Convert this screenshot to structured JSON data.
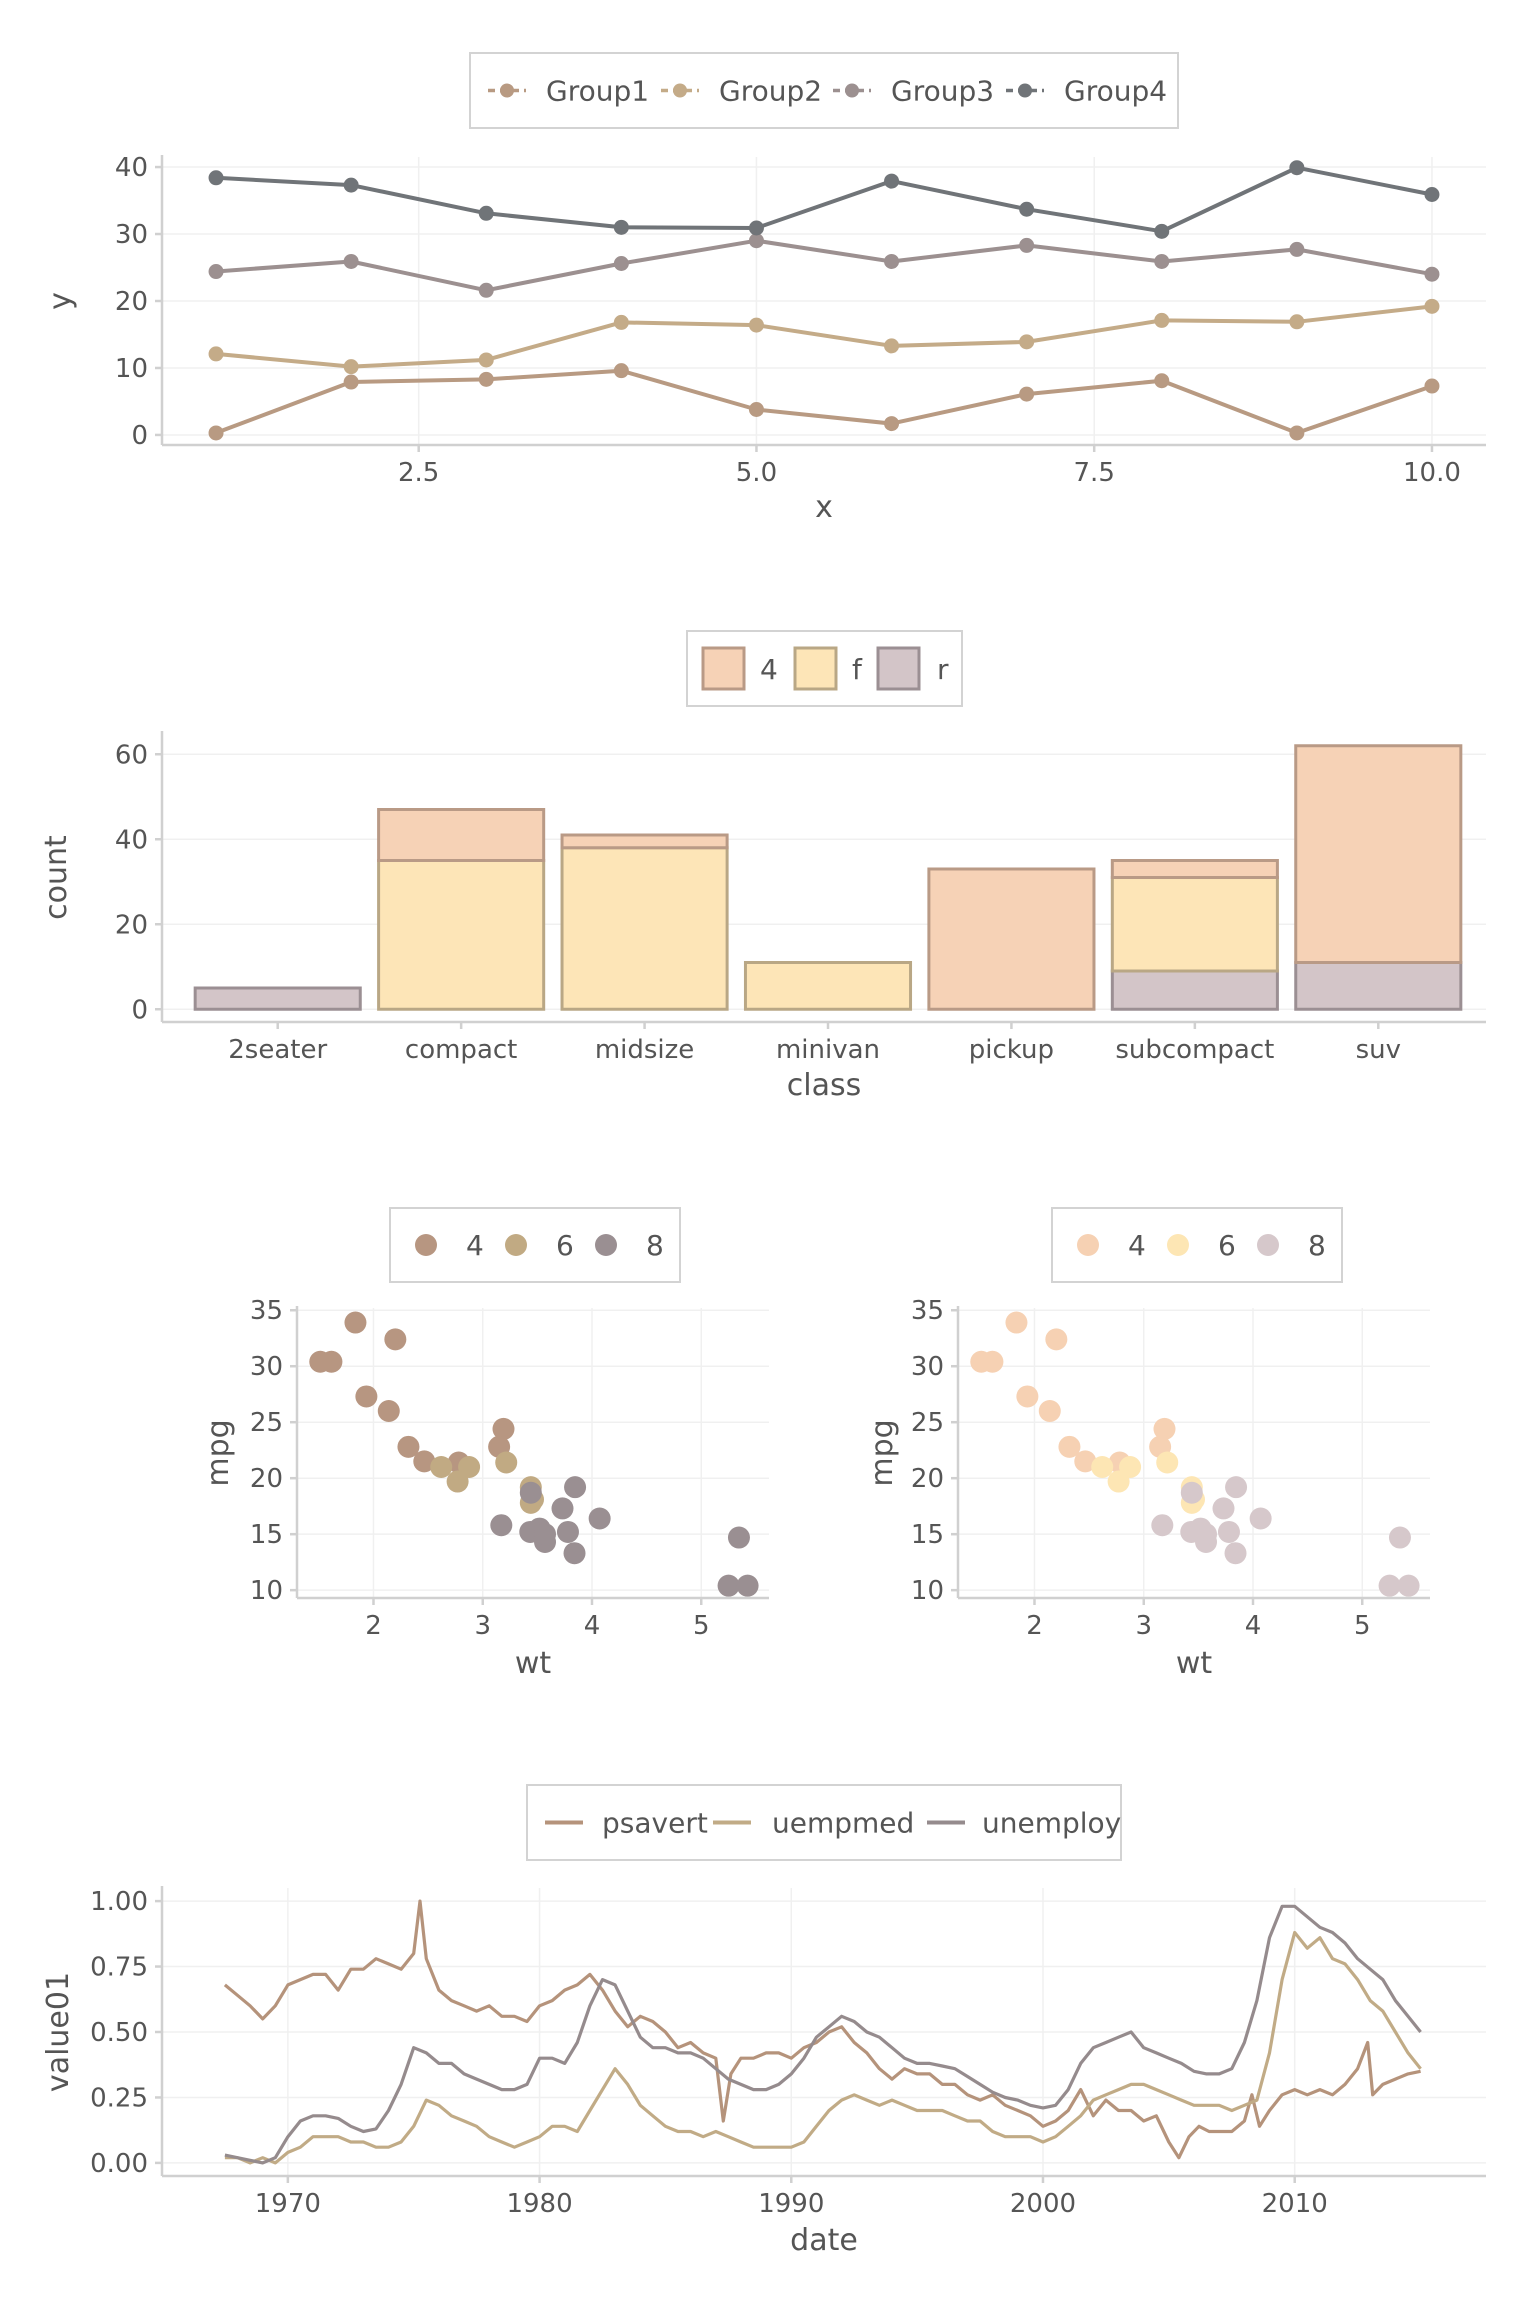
{
  "chart_data": [
    {
      "type": "line",
      "xlabel": "x",
      "ylabel": "y",
      "xlim": [
        0.6,
        10.4
      ],
      "ylim": [
        -1.5,
        41.5
      ],
      "xticks": [
        2.5,
        5.0,
        7.5,
        10.0
      ],
      "xtick_labels": [
        "2.5",
        "5.0",
        "7.5",
        "10.0"
      ],
      "yticks": [
        0,
        10,
        20,
        30,
        40
      ],
      "ytick_labels": [
        "0",
        "10",
        "20",
        "30",
        "40"
      ],
      "legend_position": "top",
      "grid": true,
      "markers": true,
      "x": [
        1,
        2,
        3,
        4,
        5,
        6,
        7,
        8,
        9,
        10
      ],
      "series": [
        {
          "name": "Group1",
          "color": "#b89a82",
          "values": [
            0.3,
            7.9,
            8.3,
            9.6,
            3.8,
            1.7,
            6.1,
            8.1,
            0.3,
            7.3
          ]
        },
        {
          "name": "Group2",
          "color": "#c4ab88",
          "values": [
            12.1,
            10.2,
            11.2,
            16.8,
            16.4,
            13.3,
            13.9,
            17.1,
            16.9,
            19.2
          ]
        },
        {
          "name": "Group3",
          "color": "#9c9090",
          "values": [
            24.4,
            25.9,
            21.6,
            25.6,
            29.0,
            25.9,
            28.3,
            25.9,
            27.7,
            24.0
          ]
        },
        {
          "name": "Group4",
          "color": "#707478",
          "values": [
            38.4,
            37.3,
            33.1,
            31.0,
            30.9,
            37.9,
            33.7,
            30.4,
            39.9,
            35.9
          ]
        }
      ]
    },
    {
      "type": "bar",
      "stacked": true,
      "xlabel": "class",
      "ylabel": "count",
      "ylim": [
        -3,
        65
      ],
      "yticks": [
        0,
        20,
        40,
        60
      ],
      "ytick_labels": [
        "0",
        "20",
        "40",
        "60"
      ],
      "legend_position": "top",
      "grid": true,
      "categories": [
        "2seater",
        "compact",
        "midsize",
        "minivan",
        "pickup",
        "subcompact",
        "suv"
      ],
      "series": [
        {
          "name": "r",
          "color": "#d3c5c8",
          "values": [
            5,
            0,
            0,
            0,
            0,
            9,
            11
          ]
        },
        {
          "name": "f",
          "color": "#fde5b7",
          "values": [
            0,
            35,
            38,
            11,
            0,
            22,
            0
          ]
        },
        {
          "name": "4",
          "color": "#f6d2b6",
          "values": [
            0,
            12,
            3,
            0,
            33,
            4,
            51
          ]
        }
      ],
      "legend_order": [
        "4",
        "f",
        "r"
      ],
      "edge_colors": {
        "4": "#b99a86",
        "f": "#b9a785",
        "r": "#9b8f93"
      }
    },
    {
      "type": "scatter",
      "xlabel": "wt",
      "ylabel": "mpg",
      "xlim": [
        1.3,
        5.62
      ],
      "ylim": [
        9.3,
        35.2
      ],
      "xticks": [
        2,
        3,
        4,
        5
      ],
      "xtick_labels": [
        "2",
        "3",
        "4",
        "5"
      ],
      "yticks": [
        10,
        15,
        20,
        25,
        30,
        35
      ],
      "ytick_labels": [
        "10",
        "15",
        "20",
        "25",
        "30",
        "35"
      ],
      "legend_position": "top",
      "grid": true,
      "series": [
        {
          "name": "4",
          "color": "#b79681",
          "x": [
            2.32,
            3.19,
            3.15,
            2.2,
            1.615,
            1.835,
            2.465,
            1.935,
            2.14,
            1.513,
            2.78
          ],
          "y": [
            22.8,
            24.4,
            22.8,
            32.4,
            30.4,
            33.9,
            21.5,
            27.3,
            26.0,
            30.4,
            21.4
          ]
        },
        {
          "name": "6",
          "color": "#c1aa83",
          "x": [
            2.62,
            2.875,
            3.215,
            3.46,
            3.44,
            3.44,
            2.77
          ],
          "y": [
            21.0,
            21.0,
            21.4,
            18.1,
            19.2,
            17.8,
            19.7
          ]
        },
        {
          "name": "8",
          "color": "#9a8f92",
          "x": [
            3.44,
            3.57,
            4.07,
            3.73,
            3.78,
            5.25,
            5.424,
            5.345,
            3.52,
            3.435,
            3.84,
            3.845,
            3.17,
            3.57
          ],
          "y": [
            18.7,
            14.3,
            16.4,
            17.3,
            15.2,
            10.4,
            10.4,
            14.7,
            15.5,
            15.2,
            13.3,
            19.2,
            15.8,
            15.0
          ]
        }
      ]
    },
    {
      "type": "scatter",
      "xlabel": "wt",
      "ylabel": "mpg",
      "xlim": [
        1.3,
        5.62
      ],
      "ylim": [
        9.3,
        35.2
      ],
      "xticks": [
        2,
        3,
        4,
        5
      ],
      "xtick_labels": [
        "2",
        "3",
        "4",
        "5"
      ],
      "yticks": [
        10,
        15,
        20,
        25,
        30,
        35
      ],
      "ytick_labels": [
        "10",
        "15",
        "20",
        "25",
        "30",
        "35"
      ],
      "legend_position": "top",
      "grid": true,
      "series": [
        {
          "name": "4",
          "color": "#f6d1b3",
          "x": [
            2.32,
            3.19,
            3.15,
            2.2,
            1.615,
            1.835,
            2.465,
            1.935,
            2.14,
            1.513,
            2.78
          ],
          "y": [
            22.8,
            24.4,
            22.8,
            32.4,
            30.4,
            33.9,
            21.5,
            27.3,
            26.0,
            30.4,
            21.4
          ]
        },
        {
          "name": "6",
          "color": "#fde6b4",
          "x": [
            2.62,
            2.875,
            3.215,
            3.46,
            3.44,
            3.44,
            2.77
          ],
          "y": [
            21.0,
            21.0,
            21.4,
            18.1,
            19.2,
            17.8,
            19.7
          ]
        },
        {
          "name": "8",
          "color": "#d6c8cb",
          "x": [
            3.44,
            3.57,
            4.07,
            3.73,
            3.78,
            5.25,
            5.424,
            5.345,
            3.52,
            3.435,
            3.84,
            3.845,
            3.17,
            3.57
          ],
          "y": [
            18.7,
            14.3,
            16.4,
            17.3,
            15.2,
            10.4,
            10.4,
            14.7,
            15.5,
            15.2,
            13.3,
            19.2,
            15.8,
            15.0
          ]
        }
      ]
    },
    {
      "type": "line",
      "xlabel": "date",
      "ylabel": "value01",
      "xlim": [
        1965.0,
        2017.6
      ],
      "ylim": [
        -0.05,
        1.05
      ],
      "xticks": [
        1970,
        1980,
        1990,
        2000,
        2010
      ],
      "xtick_labels": [
        "1970",
        "1980",
        "1990",
        "2000",
        "2010"
      ],
      "yticks": [
        0,
        0.25,
        0.5,
        0.75,
        1.0
      ],
      "ytick_labels": [
        "0.00",
        "0.25",
        "0.50",
        "0.75",
        "1.00"
      ],
      "legend_position": "top",
      "grid": true,
      "series": [
        {
          "name": "psavert",
          "color": "#b5937b",
          "x": [
            1967.5,
            1968,
            1968.5,
            1969,
            1969.5,
            1970,
            1970.5,
            1971,
            1971.5,
            1972,
            1972.5,
            1973,
            1973.5,
            1974,
            1974.5,
            1975,
            1975.25,
            1975.5,
            1976,
            1976.5,
            1977,
            1977.5,
            1978,
            1978.5,
            1979,
            1979.5,
            1980,
            1980.5,
            1981,
            1981.5,
            1982,
            1982.5,
            1983,
            1983.5,
            1984,
            1984.5,
            1985,
            1985.5,
            1986,
            1986.5,
            1987,
            1987.3,
            1987.6,
            1988,
            1988.5,
            1989,
            1989.5,
            1990,
            1990.5,
            1991,
            1991.5,
            1992,
            1992.5,
            1993,
            1993.5,
            1994,
            1994.5,
            1995,
            1995.5,
            1996,
            1996.5,
            1997,
            1997.5,
            1998,
            1998.5,
            1999,
            1999.5,
            2000,
            2000.5,
            2001,
            2001.5,
            2002,
            2002.5,
            2003,
            2003.5,
            2004,
            2004.5,
            2005,
            2005.4,
            2005.8,
            2006.2,
            2006.6,
            2007,
            2007.5,
            2008,
            2008.3,
            2008.6,
            2009,
            2009.5,
            2010,
            2010.5,
            2011,
            2011.5,
            2012,
            2012.5,
            2012.9,
            2013.1,
            2013.5,
            2014,
            2014.5,
            2015
          ],
          "y": [
            0.68,
            0.64,
            0.6,
            0.55,
            0.6,
            0.68,
            0.7,
            0.72,
            0.72,
            0.66,
            0.74,
            0.74,
            0.78,
            0.76,
            0.74,
            0.8,
            1.0,
            0.78,
            0.66,
            0.62,
            0.6,
            0.58,
            0.6,
            0.56,
            0.56,
            0.54,
            0.6,
            0.62,
            0.66,
            0.68,
            0.72,
            0.66,
            0.58,
            0.52,
            0.56,
            0.54,
            0.5,
            0.44,
            0.46,
            0.42,
            0.4,
            0.16,
            0.34,
            0.4,
            0.4,
            0.42,
            0.42,
            0.4,
            0.44,
            0.46,
            0.5,
            0.52,
            0.46,
            0.42,
            0.36,
            0.32,
            0.36,
            0.34,
            0.34,
            0.3,
            0.3,
            0.26,
            0.24,
            0.26,
            0.22,
            0.2,
            0.18,
            0.14,
            0.16,
            0.2,
            0.28,
            0.18,
            0.24,
            0.2,
            0.2,
            0.16,
            0.18,
            0.08,
            0.02,
            0.1,
            0.14,
            0.12,
            0.12,
            0.12,
            0.16,
            0.26,
            0.14,
            0.2,
            0.26,
            0.28,
            0.26,
            0.28,
            0.26,
            0.3,
            0.36,
            0.46,
            0.26,
            0.3,
            0.32,
            0.34,
            0.35
          ]
        },
        {
          "name": "uempmed",
          "color": "#c1ab86",
          "x": [
            1967.5,
            1968,
            1968.5,
            1969,
            1969.5,
            1970,
            1970.5,
            1971,
            1971.5,
            1972,
            1972.5,
            1973,
            1973.5,
            1974,
            1974.5,
            1975,
            1975.5,
            1976,
            1976.5,
            1977,
            1977.5,
            1978,
            1978.5,
            1979,
            1979.5,
            1980,
            1980.5,
            1981,
            1981.5,
            1982,
            1982.5,
            1983,
            1983.5,
            1984,
            1984.5,
            1985,
            1985.5,
            1986,
            1986.5,
            1987,
            1987.5,
            1988,
            1988.5,
            1989,
            1989.5,
            1990,
            1990.5,
            1991,
            1991.5,
            1992,
            1992.5,
            1993,
            1993.5,
            1994,
            1994.5,
            1995,
            1995.5,
            1996,
            1996.5,
            1997,
            1997.5,
            1998,
            1998.5,
            1999,
            1999.5,
            2000,
            2000.5,
            2001,
            2001.5,
            2002,
            2002.5,
            2003,
            2003.5,
            2004,
            2004.5,
            2005,
            2005.5,
            2006,
            2006.5,
            2007,
            2007.5,
            2008,
            2008.5,
            2009,
            2009.5,
            2010,
            2010.5,
            2011,
            2011.5,
            2012,
            2012.5,
            2013,
            2013.5,
            2014,
            2014.5,
            2015
          ],
          "y": [
            0.02,
            0.02,
            0.0,
            0.02,
            0.0,
            0.04,
            0.06,
            0.1,
            0.1,
            0.1,
            0.08,
            0.08,
            0.06,
            0.06,
            0.08,
            0.14,
            0.24,
            0.22,
            0.18,
            0.16,
            0.14,
            0.1,
            0.08,
            0.06,
            0.08,
            0.1,
            0.14,
            0.14,
            0.12,
            0.2,
            0.28,
            0.36,
            0.3,
            0.22,
            0.18,
            0.14,
            0.12,
            0.12,
            0.1,
            0.12,
            0.1,
            0.08,
            0.06,
            0.06,
            0.06,
            0.06,
            0.08,
            0.14,
            0.2,
            0.24,
            0.26,
            0.24,
            0.22,
            0.24,
            0.22,
            0.2,
            0.2,
            0.2,
            0.18,
            0.16,
            0.16,
            0.12,
            0.1,
            0.1,
            0.1,
            0.08,
            0.1,
            0.14,
            0.18,
            0.24,
            0.26,
            0.28,
            0.3,
            0.3,
            0.28,
            0.26,
            0.24,
            0.22,
            0.22,
            0.22,
            0.2,
            0.22,
            0.24,
            0.42,
            0.7,
            0.88,
            0.82,
            0.86,
            0.78,
            0.76,
            0.7,
            0.62,
            0.58,
            0.5,
            0.42,
            0.36
          ]
        },
        {
          "name": "unemploy",
          "color": "#958b8d",
          "x": [
            1967.5,
            1968,
            1968.5,
            1969,
            1969.5,
            1970,
            1970.5,
            1971,
            1971.5,
            1972,
            1972.5,
            1973,
            1973.5,
            1974,
            1974.5,
            1975,
            1975.5,
            1976,
            1976.5,
            1977,
            1977.5,
            1978,
            1978.5,
            1979,
            1979.5,
            1980,
            1980.5,
            1981,
            1981.5,
            1982,
            1982.5,
            1983,
            1983.5,
            1984,
            1984.5,
            1985,
            1985.5,
            1986,
            1986.5,
            1987,
            1987.5,
            1988,
            1988.5,
            1989,
            1989.5,
            1990,
            1990.5,
            1991,
            1991.5,
            1992,
            1992.5,
            1993,
            1993.5,
            1994,
            1994.5,
            1995,
            1995.5,
            1996,
            1996.5,
            1997,
            1997.5,
            1998,
            1998.5,
            1999,
            1999.5,
            2000,
            2000.5,
            2001,
            2001.5,
            2002,
            2002.5,
            2003,
            2003.5,
            2004,
            2004.5,
            2005,
            2005.5,
            2006,
            2006.5,
            2007,
            2007.5,
            2008,
            2008.5,
            2009,
            2009.5,
            2010,
            2010.5,
            2011,
            2011.5,
            2012,
            2012.5,
            2013,
            2013.5,
            2014,
            2014.5,
            2015
          ],
          "y": [
            0.03,
            0.02,
            0.01,
            0.0,
            0.02,
            0.1,
            0.16,
            0.18,
            0.18,
            0.17,
            0.14,
            0.12,
            0.13,
            0.2,
            0.3,
            0.44,
            0.42,
            0.38,
            0.38,
            0.34,
            0.32,
            0.3,
            0.28,
            0.28,
            0.3,
            0.4,
            0.4,
            0.38,
            0.46,
            0.6,
            0.7,
            0.68,
            0.58,
            0.48,
            0.44,
            0.44,
            0.42,
            0.42,
            0.4,
            0.36,
            0.32,
            0.3,
            0.28,
            0.28,
            0.3,
            0.34,
            0.4,
            0.48,
            0.52,
            0.56,
            0.54,
            0.5,
            0.48,
            0.44,
            0.4,
            0.38,
            0.38,
            0.37,
            0.36,
            0.33,
            0.3,
            0.27,
            0.25,
            0.24,
            0.22,
            0.21,
            0.22,
            0.28,
            0.38,
            0.44,
            0.46,
            0.48,
            0.5,
            0.44,
            0.42,
            0.4,
            0.38,
            0.35,
            0.34,
            0.34,
            0.36,
            0.46,
            0.62,
            0.86,
            0.98,
            0.98,
            0.94,
            0.9,
            0.88,
            0.84,
            0.78,
            0.74,
            0.7,
            0.62,
            0.56,
            0.5
          ]
        }
      ]
    }
  ]
}
